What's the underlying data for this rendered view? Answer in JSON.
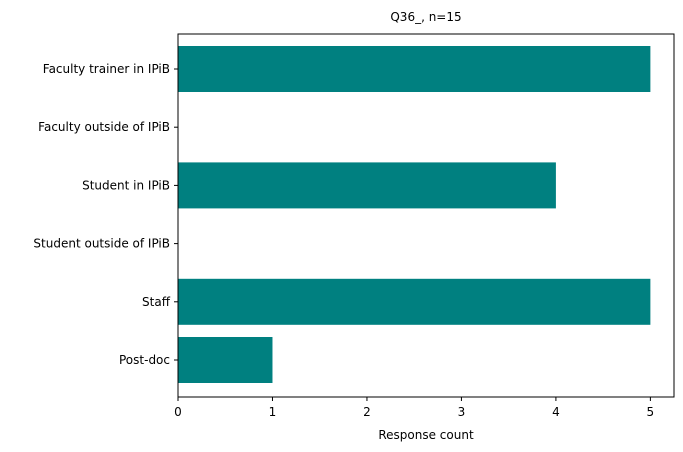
{
  "chart_data": {
    "type": "bar",
    "orientation": "horizontal",
    "title": "Q36_, n=15",
    "xlabel": "Response count",
    "ylabel": "",
    "categories": [
      "Faculty trainer in IPiB",
      "Faculty outside of IPiB",
      "Student in IPiB",
      "Student outside of IPiB",
      "Staff",
      "Post-doc"
    ],
    "values": [
      5,
      0,
      4,
      0,
      5,
      1
    ],
    "xlim": [
      0,
      5.25
    ],
    "xticks": [
      "0",
      "1",
      "2",
      "3",
      "4",
      "5"
    ],
    "grid": false,
    "bar_color": "#008080"
  }
}
